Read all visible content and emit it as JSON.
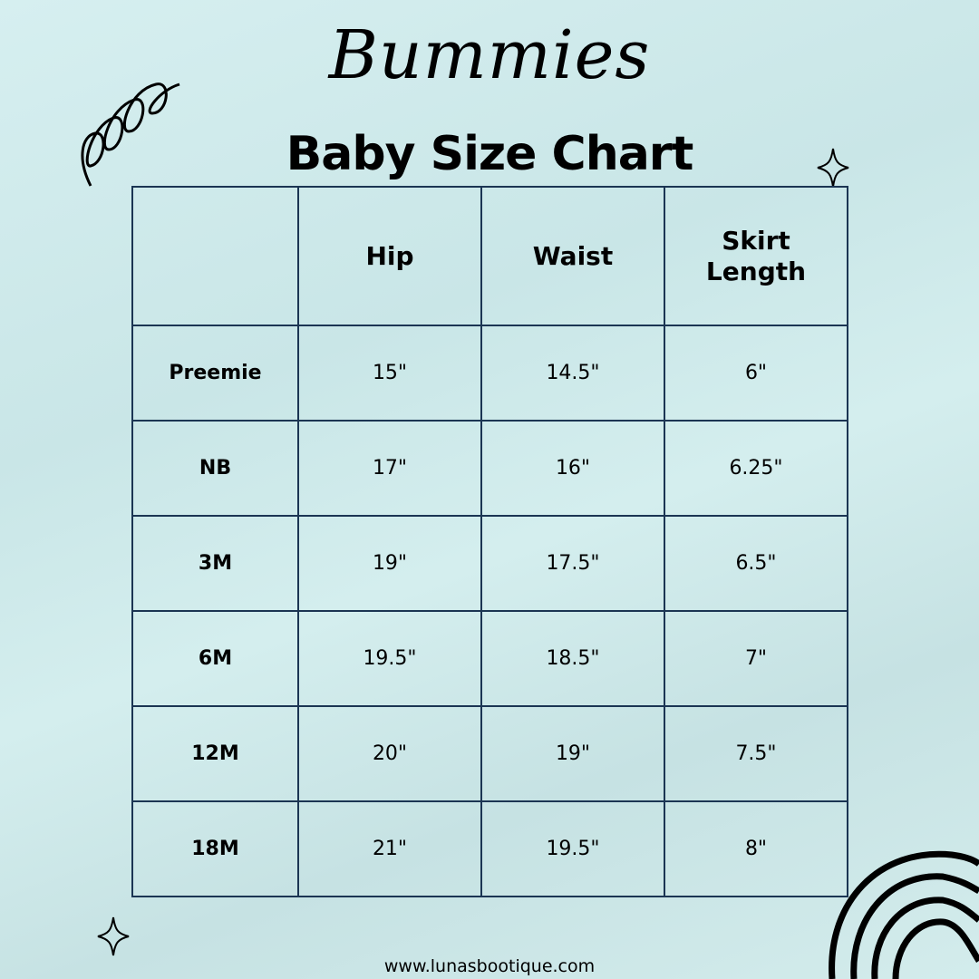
{
  "header": {
    "script_title": "Bummies",
    "title": "Baby Size Chart"
  },
  "table": {
    "columns": [
      "",
      "Hip",
      "Waist",
      "Skirt Length"
    ],
    "rows": [
      {
        "size": "Preemie",
        "hip": "15\"",
        "waist": "14.5\"",
        "skirt_length": "6\""
      },
      {
        "size": "NB",
        "hip": "17\"",
        "waist": "16\"",
        "skirt_length": "6.25\""
      },
      {
        "size": "3M",
        "hip": "19\"",
        "waist": "17.5\"",
        "skirt_length": "6.5\""
      },
      {
        "size": "6M",
        "hip": "19.5\"",
        "waist": "18.5\"",
        "skirt_length": "7\""
      },
      {
        "size": "12M",
        "hip": "20\"",
        "waist": "19\"",
        "skirt_length": "7.5\""
      },
      {
        "size": "18M",
        "hip": "21\"",
        "waist": "19.5\"",
        "skirt_length": "8\""
      }
    ]
  },
  "footer": {
    "website": "www.lunasbootique.com"
  },
  "colors": {
    "border": "#1b3553",
    "background": "#d2ecec"
  },
  "icons": [
    "squiggle-icon",
    "sparkle-icon",
    "rainbow-arcs-icon"
  ]
}
